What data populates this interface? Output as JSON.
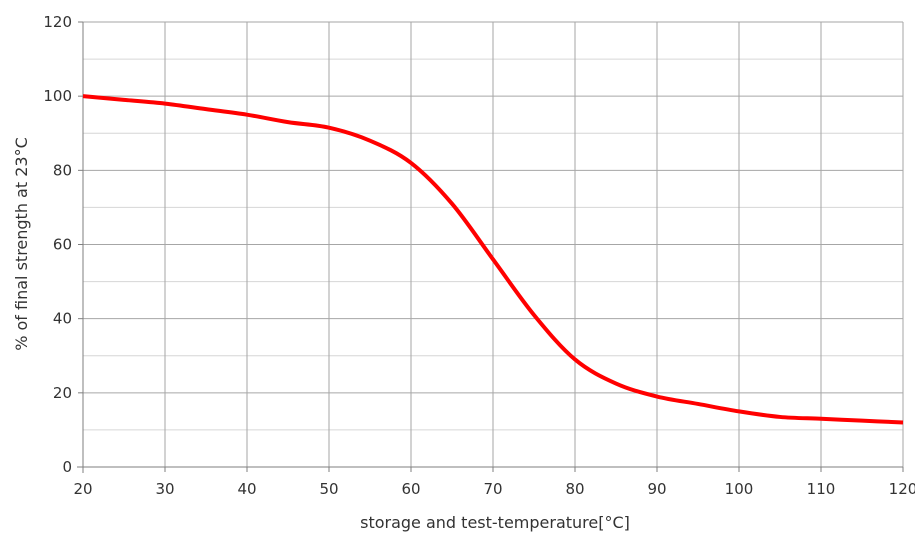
{
  "chart_data": {
    "type": "line",
    "xlabel": "storage and test-temperature[°C]",
    "ylabel": "% of final strength at  23°C",
    "xlim": [
      20,
      120
    ],
    "ylim": [
      0,
      120
    ],
    "x_ticks": [
      20,
      30,
      40,
      50,
      60,
      70,
      80,
      90,
      100,
      110,
      120
    ],
    "y_ticks": [
      0,
      20,
      40,
      60,
      80,
      100,
      120
    ],
    "x_tick_labels": [
      "20",
      "30",
      "40",
      "50",
      "60",
      "70",
      "80",
      "90",
      "100",
      "110",
      "120"
    ],
    "y_tick_labels": [
      "0",
      "20",
      "40",
      "60",
      "80",
      "100",
      "120"
    ],
    "grid": true,
    "minor_y_gridlines": true,
    "legend": "none",
    "series": [
      {
        "color": "#ff0000",
        "x": [
          20,
          25,
          30,
          35,
          40,
          45,
          50,
          55,
          60,
          65,
          70,
          75,
          80,
          85,
          90,
          95,
          100,
          105,
          110,
          115,
          120
        ],
        "y": [
          100,
          99,
          98,
          96.5,
          95,
          93,
          91.5,
          88,
          82,
          71,
          56,
          41,
          29,
          22.5,
          19,
          17,
          15,
          13.5,
          13,
          12.5,
          12
        ]
      }
    ]
  }
}
